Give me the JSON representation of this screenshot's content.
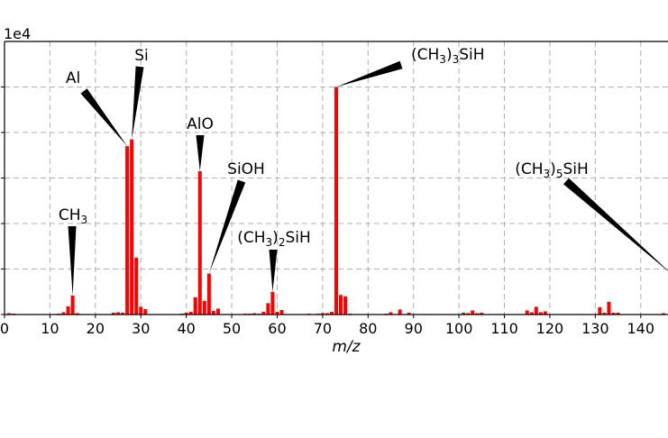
{
  "chart_data": {
    "type": "bar",
    "title": "",
    "xlabel": "m/z",
    "ylabel": "",
    "y_multiplier": "1e4",
    "xlim": [
      0,
      146
    ],
    "ylim": [
      0,
      6
    ],
    "x_ticks": [
      0,
      10,
      20,
      30,
      40,
      50,
      60,
      70,
      80,
      90,
      100,
      110,
      120,
      130,
      140
    ],
    "y_ticks": [
      0,
      1,
      2,
      3,
      4,
      5
    ],
    "grid": true,
    "color": "#ff0000",
    "bars": [
      {
        "x": 1,
        "y": 0.03
      },
      {
        "x": 2,
        "y": 0.02
      },
      {
        "x": 12,
        "y": 0.02
      },
      {
        "x": 13,
        "y": 0.05
      },
      {
        "x": 14,
        "y": 0.18
      },
      {
        "x": 15,
        "y": 0.42
      },
      {
        "x": 16,
        "y": 0.03
      },
      {
        "x": 24,
        "y": 0.04
      },
      {
        "x": 25,
        "y": 0.05
      },
      {
        "x": 26,
        "y": 0.04
      },
      {
        "x": 27,
        "y": 3.7
      },
      {
        "x": 28,
        "y": 3.85
      },
      {
        "x": 29,
        "y": 1.25
      },
      {
        "x": 30,
        "y": 0.17
      },
      {
        "x": 31,
        "y": 0.12
      },
      {
        "x": 39,
        "y": 0.02
      },
      {
        "x": 40,
        "y": 0.04
      },
      {
        "x": 41,
        "y": 0.06
      },
      {
        "x": 42,
        "y": 0.38
      },
      {
        "x": 43,
        "y": 3.15
      },
      {
        "x": 44,
        "y": 0.3
      },
      {
        "x": 45,
        "y": 0.9
      },
      {
        "x": 46,
        "y": 0.08
      },
      {
        "x": 47,
        "y": 0.13
      },
      {
        "x": 53,
        "y": 0.02
      },
      {
        "x": 54,
        "y": 0.02
      },
      {
        "x": 55,
        "y": 0.03
      },
      {
        "x": 56,
        "y": 0.02
      },
      {
        "x": 57,
        "y": 0.06
      },
      {
        "x": 58,
        "y": 0.25
      },
      {
        "x": 59,
        "y": 0.5
      },
      {
        "x": 60,
        "y": 0.06
      },
      {
        "x": 61,
        "y": 0.1
      },
      {
        "x": 67,
        "y": 0.02
      },
      {
        "x": 69,
        "y": 0.02
      },
      {
        "x": 70,
        "y": 0.03
      },
      {
        "x": 71,
        "y": 0.03
      },
      {
        "x": 72,
        "y": 0.06
      },
      {
        "x": 73,
        "y": 5.0
      },
      {
        "x": 74,
        "y": 0.43
      },
      {
        "x": 75,
        "y": 0.4
      },
      {
        "x": 76,
        "y": 0.02
      },
      {
        "x": 84,
        "y": 0.02
      },
      {
        "x": 85,
        "y": 0.05
      },
      {
        "x": 87,
        "y": 0.11
      },
      {
        "x": 89,
        "y": 0.04
      },
      {
        "x": 101,
        "y": 0.04
      },
      {
        "x": 102,
        "y": 0.03
      },
      {
        "x": 103,
        "y": 0.09
      },
      {
        "x": 104,
        "y": 0.03
      },
      {
        "x": 105,
        "y": 0.04
      },
      {
        "x": 115,
        "y": 0.09
      },
      {
        "x": 116,
        "y": 0.05
      },
      {
        "x": 117,
        "y": 0.17
      },
      {
        "x": 118,
        "y": 0.05
      },
      {
        "x": 119,
        "y": 0.07
      },
      {
        "x": 131,
        "y": 0.16
      },
      {
        "x": 132,
        "y": 0.04
      },
      {
        "x": 133,
        "y": 0.28
      },
      {
        "x": 134,
        "y": 0.04
      },
      {
        "x": 135,
        "y": 0.04
      },
      {
        "x": 145,
        "y": 0.03
      }
    ],
    "annotations": [
      {
        "id": "ch3",
        "base": "CH",
        "sub": "3",
        "peak_x": 15
      },
      {
        "id": "al",
        "base": "Al",
        "sub": "",
        "peak_x": 27
      },
      {
        "id": "si",
        "base": "Si",
        "sub": "",
        "peak_x": 28
      },
      {
        "id": "alo",
        "base": "AlO",
        "sub": "",
        "peak_x": 43
      },
      {
        "id": "sioh",
        "base": "SiOH",
        "sub": "",
        "peak_x": 45
      },
      {
        "id": "ch32sih",
        "base": "(CH",
        "sub": "3",
        "tail": ")",
        "sub2": "2",
        "suffix": "SiH",
        "peak_x": 59
      },
      {
        "id": "ch33sih",
        "base": "(CH",
        "sub": "3",
        "tail": ")",
        "sub2": "3",
        "suffix": "SiH",
        "peak_x": 73
      },
      {
        "id": "ch35sih",
        "base": "(CH",
        "sub": "3",
        "tail": ")",
        "sub2": "5",
        "suffix": "SiH",
        "peak_x": 147
      }
    ]
  }
}
